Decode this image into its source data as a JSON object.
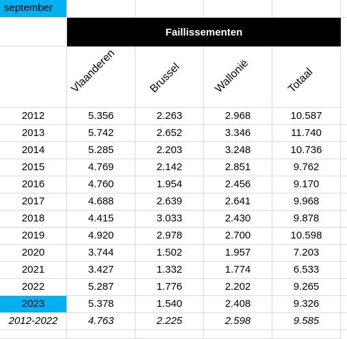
{
  "month_label": "september",
  "header": "Faillissementen",
  "columns": [
    "Vlaanderen",
    "Brussel",
    "Wallonië",
    "Totaal"
  ],
  "rows": [
    {
      "year": "2012",
      "values": [
        "5.356",
        "2.263",
        "2.968",
        "10.587"
      ]
    },
    {
      "year": "2013",
      "values": [
        "5.742",
        "2.652",
        "3.346",
        "11.740"
      ]
    },
    {
      "year": "2014",
      "values": [
        "5.285",
        "2.203",
        "3.248",
        "10.736"
      ]
    },
    {
      "year": "2015",
      "values": [
        "4.769",
        "2.142",
        "2.851",
        "9.762"
      ]
    },
    {
      "year": "2016",
      "values": [
        "4.760",
        "1.954",
        "2.456",
        "9.170"
      ]
    },
    {
      "year": "2017",
      "values": [
        "4.688",
        "2.639",
        "2.641",
        "9.968"
      ]
    },
    {
      "year": "2018",
      "values": [
        "4.415",
        "3.033",
        "2.430",
        "9.878"
      ]
    },
    {
      "year": "2019",
      "values": [
        "4.920",
        "2.978",
        "2.700",
        "10.598"
      ]
    },
    {
      "year": "2020",
      "values": [
        "3.744",
        "1.502",
        "1.957",
        "7.203"
      ]
    },
    {
      "year": "2021",
      "values": [
        "3.427",
        "1.332",
        "1.774",
        "6.533"
      ]
    },
    {
      "year": "2022",
      "values": [
        "5.287",
        "1.776",
        "2.202",
        "9.265"
      ]
    },
    {
      "year": "2023",
      "values": [
        "5.378",
        "1.540",
        "2.408",
        "9.326"
      ]
    }
  ],
  "average": {
    "label": "2012-2022",
    "values": [
      "4.763",
      "2.225",
      "2.598",
      "9.585"
    ]
  },
  "highlight_color": "#00b0f0"
}
